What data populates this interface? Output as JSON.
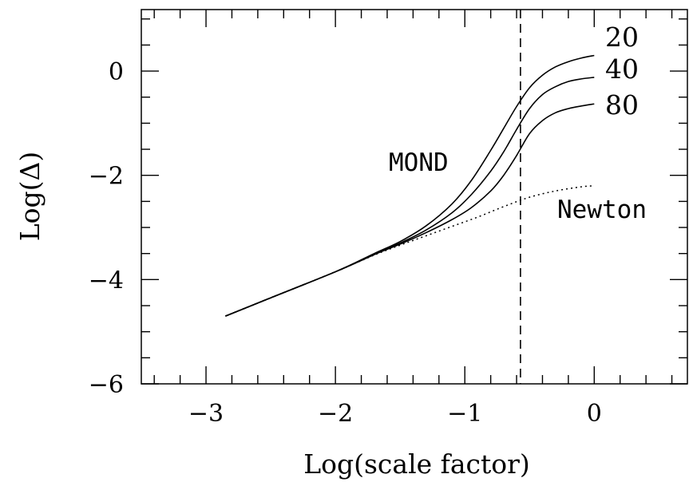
{
  "chart_data": {
    "type": "line",
    "xlabel": "Log(scale factor)",
    "ylabel": "Log(Δ)",
    "xlim": [
      -3.5,
      0.72
    ],
    "ylim": [
      -6,
      1.18
    ],
    "x_ticks": [
      {
        "value": -3,
        "label": "−3"
      },
      {
        "value": -2,
        "label": "−2"
      },
      {
        "value": -1,
        "label": "−1"
      },
      {
        "value": 0,
        "label": "0"
      }
    ],
    "y_ticks": [
      {
        "value": 0,
        "label": "0"
      },
      {
        "value": -2,
        "label": "−2"
      },
      {
        "value": -4,
        "label": "−4"
      },
      {
        "value": -6,
        "label": "−6"
      }
    ],
    "x_minor_step": 0.2,
    "y_minor_step": 0.5,
    "vertical_line": {
      "x": -0.57,
      "style": "dashed"
    },
    "series": [
      {
        "name": "20",
        "style": "solid",
        "x": [
          -2.85,
          -2.5,
          -2.0,
          -1.7,
          -1.5,
          -1.3,
          -1.1,
          -0.95,
          -0.8,
          -0.7,
          -0.6,
          -0.5,
          -0.4,
          -0.3,
          -0.2,
          -0.1,
          0.0
        ],
        "y": [
          -4.7,
          -4.35,
          -3.85,
          -3.5,
          -3.27,
          -2.97,
          -2.55,
          -2.1,
          -1.52,
          -1.1,
          -0.68,
          -0.32,
          -0.08,
          0.08,
          0.18,
          0.25,
          0.3
        ]
      },
      {
        "name": "40",
        "style": "solid",
        "x": [
          -2.85,
          -2.5,
          -2.0,
          -1.7,
          -1.5,
          -1.3,
          -1.1,
          -0.95,
          -0.8,
          -0.7,
          -0.6,
          -0.5,
          -0.4,
          -0.3,
          -0.2,
          -0.1,
          0.0
        ],
        "y": [
          -4.7,
          -4.35,
          -3.85,
          -3.52,
          -3.3,
          -3.05,
          -2.72,
          -2.37,
          -1.92,
          -1.55,
          -1.12,
          -0.72,
          -0.45,
          -0.3,
          -0.2,
          -0.15,
          -0.12
        ]
      },
      {
        "name": "80",
        "style": "solid",
        "x": [
          -2.85,
          -2.5,
          -2.0,
          -1.7,
          -1.5,
          -1.3,
          -1.1,
          -0.95,
          -0.8,
          -0.7,
          -0.6,
          -0.5,
          -0.4,
          -0.3,
          -0.2,
          -0.1,
          0.0
        ],
        "y": [
          -4.7,
          -4.35,
          -3.85,
          -3.52,
          -3.32,
          -3.1,
          -2.85,
          -2.62,
          -2.3,
          -2.0,
          -1.62,
          -1.2,
          -0.95,
          -0.8,
          -0.72,
          -0.67,
          -0.63
        ]
      },
      {
        "name": "Newton",
        "style": "dotted",
        "x": [
          -2.85,
          -2.5,
          -2.0,
          -1.7,
          -1.5,
          -1.3,
          -1.1,
          -0.9,
          -0.7,
          -0.5,
          -0.3,
          -0.1,
          0.0
        ],
        "y": [
          -4.7,
          -4.35,
          -3.85,
          -3.53,
          -3.34,
          -3.16,
          -2.98,
          -2.8,
          -2.6,
          -2.42,
          -2.3,
          -2.22,
          -2.2
        ]
      }
    ],
    "labels": {
      "mond": "MOND",
      "newton": "Newton",
      "s20": "20",
      "s40": "40",
      "s80": "80"
    }
  }
}
